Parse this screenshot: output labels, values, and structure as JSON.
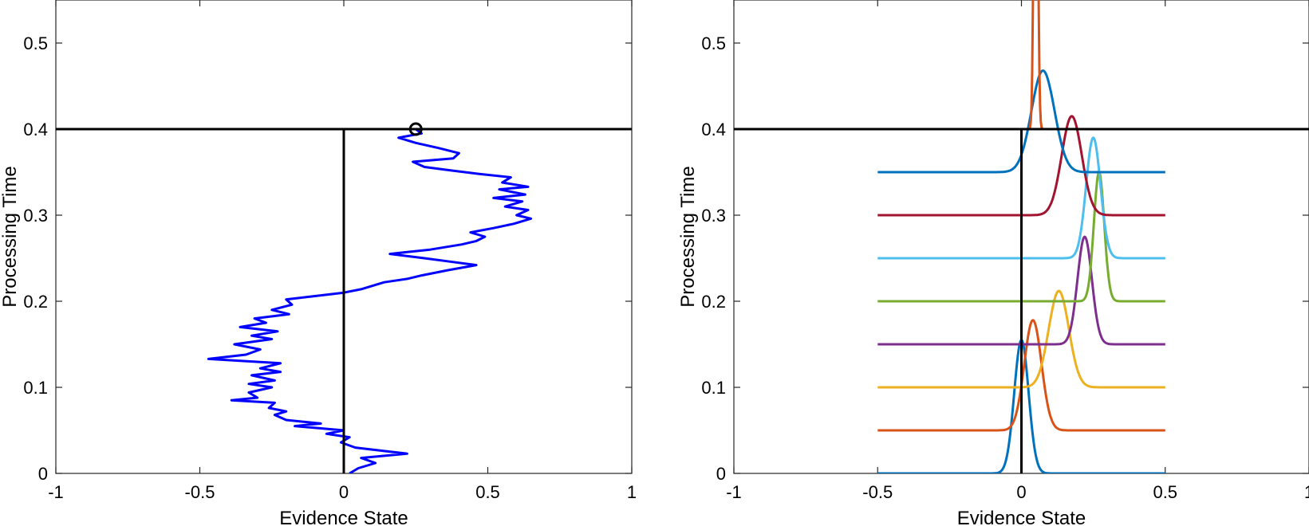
{
  "chart_data": [
    {
      "type": "line",
      "xlabel": "Evidence State",
      "ylabel": "Processing Time",
      "xlim": [
        -1,
        1
      ],
      "ylim": [
        0,
        0.55
      ],
      "xticks": [
        -1,
        -0.5,
        0,
        0.5,
        1
      ],
      "xtick_labels": [
        "-1",
        "-0.5",
        "0",
        "0.5",
        "1"
      ],
      "yticks": [
        0,
        0.1,
        0.2,
        0.3,
        0.4,
        0.5
      ],
      "ytick_labels": [
        "0",
        "0.1",
        "0.2",
        "0.3",
        "0.4",
        "0.5"
      ],
      "grid": false,
      "threshold_y": 0.4,
      "reference_x": 0,
      "series": [
        {
          "color": "#0000ff",
          "points": [
            [
              0.02,
              0.0
            ],
            [
              0.05,
              0.006
            ],
            [
              0.11,
              0.012
            ],
            [
              0.06,
              0.018
            ],
            [
              0.22,
              0.023
            ],
            [
              0.14,
              0.026
            ],
            [
              0.04,
              0.03
            ],
            [
              -0.01,
              0.036
            ],
            [
              0.02,
              0.042
            ],
            [
              -0.06,
              0.046
            ],
            [
              0.0,
              0.05
            ],
            [
              -0.17,
              0.055
            ],
            [
              -0.08,
              0.058
            ],
            [
              -0.2,
              0.062
            ],
            [
              -0.24,
              0.068
            ],
            [
              -0.2,
              0.072
            ],
            [
              -0.26,
              0.076
            ],
            [
              -0.24,
              0.082
            ],
            [
              -0.39,
              0.085
            ],
            [
              -0.3,
              0.088
            ],
            [
              -0.33,
              0.094
            ],
            [
              -0.25,
              0.1
            ],
            [
              -0.33,
              0.104
            ],
            [
              -0.24,
              0.108
            ],
            [
              -0.32,
              0.114
            ],
            [
              -0.22,
              0.118
            ],
            [
              -0.29,
              0.122
            ],
            [
              -0.22,
              0.128
            ],
            [
              -0.47,
              0.133
            ],
            [
              -0.34,
              0.138
            ],
            [
              -0.29,
              0.144
            ],
            [
              -0.38,
              0.15
            ],
            [
              -0.25,
              0.156
            ],
            [
              -0.32,
              0.16
            ],
            [
              -0.23,
              0.165
            ],
            [
              -0.36,
              0.17
            ],
            [
              -0.27,
              0.175
            ],
            [
              -0.31,
              0.18
            ],
            [
              -0.19,
              0.185
            ],
            [
              -0.25,
              0.19
            ],
            [
              -0.18,
              0.196
            ],
            [
              -0.2,
              0.202
            ],
            [
              -0.1,
              0.206
            ],
            [
              0.0,
              0.21
            ],
            [
              0.06,
              0.214
            ],
            [
              0.1,
              0.218
            ],
            [
              0.14,
              0.222
            ],
            [
              0.22,
              0.226
            ],
            [
              0.27,
              0.23
            ],
            [
              0.36,
              0.236
            ],
            [
              0.46,
              0.242
            ],
            [
              0.37,
              0.246
            ],
            [
              0.28,
              0.25
            ],
            [
              0.16,
              0.255
            ],
            [
              0.3,
              0.26
            ],
            [
              0.41,
              0.266
            ],
            [
              0.46,
              0.27
            ],
            [
              0.49,
              0.275
            ],
            [
              0.44,
              0.28
            ],
            [
              0.52,
              0.285
            ],
            [
              0.59,
              0.29
            ],
            [
              0.65,
              0.296
            ],
            [
              0.6,
              0.3
            ],
            [
              0.64,
              0.306
            ],
            [
              0.56,
              0.31
            ],
            [
              0.62,
              0.316
            ],
            [
              0.52,
              0.32
            ],
            [
              0.63,
              0.324
            ],
            [
              0.54,
              0.33
            ],
            [
              0.64,
              0.333
            ],
            [
              0.55,
              0.338
            ],
            [
              0.58,
              0.344
            ],
            [
              0.47,
              0.348
            ],
            [
              0.37,
              0.352
            ],
            [
              0.28,
              0.356
            ],
            [
              0.24,
              0.362
            ],
            [
              0.38,
              0.366
            ],
            [
              0.4,
              0.372
            ],
            [
              0.33,
              0.378
            ],
            [
              0.25,
              0.384
            ],
            [
              0.19,
              0.39
            ],
            [
              0.27,
              0.395
            ],
            [
              0.25,
              0.4
            ]
          ]
        }
      ],
      "annotations": [
        {
          "type": "circle-marker",
          "x": 0.25,
          "y": 0.4
        }
      ]
    },
    {
      "type": "line",
      "xlabel": "Evidence State",
      "ylabel": "Processing Time",
      "xlim": [
        -1,
        1
      ],
      "ylim": [
        0,
        0.55
      ],
      "xticks": [
        -1,
        -0.5,
        0,
        0.5,
        1
      ],
      "xtick_labels": [
        "-1",
        "-0.5",
        "0",
        "0.5",
        "1"
      ],
      "yticks": [
        0,
        0.1,
        0.2,
        0.3,
        0.4,
        0.5
      ],
      "ytick_labels": [
        "0",
        "0.1",
        "0.2",
        "0.3",
        "0.4",
        "0.5"
      ],
      "grid": false,
      "threshold_y": 0.4,
      "reference_x": 0,
      "distribution_x_range": [
        -0.5,
        0.5
      ],
      "series": [
        {
          "baseline": 0.0,
          "mean": 0.0,
          "sd": 0.025,
          "peak_height": 0.155,
          "color": "#0072bd"
        },
        {
          "baseline": 0.05,
          "mean": 0.04,
          "sd": 0.03,
          "peak_height": 0.128,
          "color": "#d95319"
        },
        {
          "baseline": 0.1,
          "mean": 0.13,
          "sd": 0.035,
          "peak_height": 0.112,
          "color": "#edb120"
        },
        {
          "baseline": 0.15,
          "mean": 0.22,
          "sd": 0.025,
          "peak_height": 0.125,
          "color": "#7e2f8e"
        },
        {
          "baseline": 0.2,
          "mean": 0.27,
          "sd": 0.018,
          "peak_height": 0.15,
          "color": "#77ac30"
        },
        {
          "baseline": 0.25,
          "mean": 0.25,
          "sd": 0.025,
          "peak_height": 0.14,
          "color": "#4dbeee"
        },
        {
          "baseline": 0.3,
          "mean": 0.175,
          "sd": 0.035,
          "peak_height": 0.115,
          "color": "#a2142f"
        },
        {
          "baseline": 0.35,
          "mean": 0.075,
          "sd": 0.04,
          "peak_height": 0.118,
          "color": "#0072bd"
        },
        {
          "baseline": 0.4,
          "mean": 0.05,
          "sd": 0.006,
          "peak_height": 0.6,
          "color": "#d95319"
        }
      ]
    }
  ]
}
